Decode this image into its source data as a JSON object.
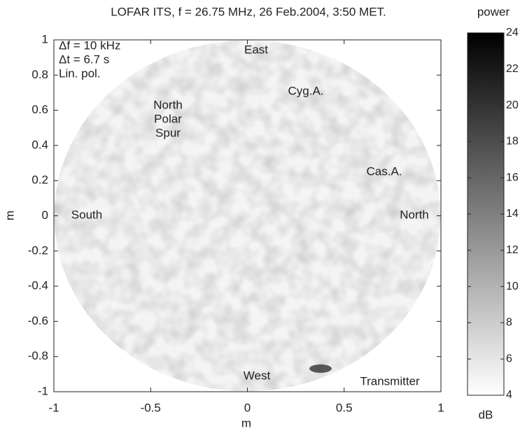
{
  "chart_data": {
    "type": "heatmap",
    "title": "LOFAR ITS, f = 26.75 MHz, 26 Feb.2004, 3:50 MET.",
    "x_label": "m",
    "y_label": "m",
    "xlim": [
      -1,
      1
    ],
    "xticks": [
      -1,
      -0.5,
      0,
      0.5,
      1
    ],
    "ylim": [
      -1,
      1
    ],
    "yticks": [
      -1,
      -0.8,
      -0.6,
      -0.4,
      -0.2,
      0,
      0.2,
      0.4,
      0.6,
      0.8,
      1
    ],
    "colorbar": {
      "title": "power",
      "unit": "dB",
      "clim": [
        4,
        24
      ],
      "ticks": [
        4,
        6,
        8,
        10,
        12,
        14,
        16,
        18,
        20,
        22,
        24
      ],
      "colors": [
        "#ffffff",
        "#000000"
      ]
    },
    "annotations": [
      "Δf = 10 kHz",
      "Δt = 6.7 s",
      "Lin. pol.",
      "East",
      "Cyg.A.",
      "North",
      "Polar",
      "Spur",
      "Cas.A.",
      "South",
      "North",
      "West",
      "Transmitter"
    ]
  }
}
